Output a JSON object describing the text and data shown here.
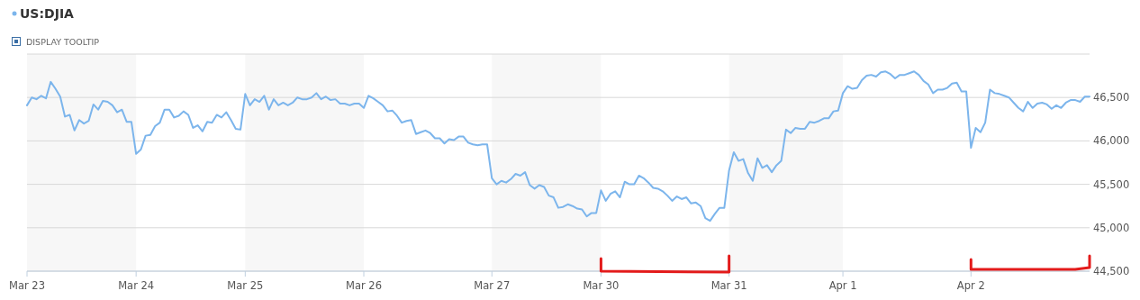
{
  "chart_data": {
    "type": "line",
    "title": "US:DJIA",
    "annotations": [
      "DISPLAY TOOLTIP"
    ],
    "categories": [
      "Mar 23",
      null,
      null,
      null,
      null,
      null,
      null,
      null,
      null,
      null,
      null,
      null,
      null,
      null,
      null,
      null,
      null,
      null,
      null,
      null,
      null,
      null,
      null,
      "Mar 24",
      null,
      null,
      null,
      null,
      null,
      null,
      null,
      null,
      null,
      null,
      null,
      null,
      null,
      null,
      null,
      null,
      null,
      null,
      null,
      null,
      null,
      null,
      "Mar 25",
      null,
      null,
      null,
      null,
      null,
      null,
      null,
      null,
      null,
      null,
      null,
      null,
      null,
      null,
      null,
      null,
      null,
      null,
      null,
      null,
      null,
      null,
      null,
      null,
      "Mar 26",
      null,
      null,
      null,
      null,
      null,
      null,
      null,
      null,
      null,
      null,
      null,
      null,
      null,
      null,
      null,
      null,
      null,
      null,
      null,
      null,
      null,
      null,
      null,
      null,
      null,
      null,
      "Mar 27",
      null,
      null,
      null,
      null,
      null,
      null,
      null,
      null,
      null,
      null,
      null,
      null,
      null,
      null,
      null,
      null,
      null,
      null,
      null,
      null,
      null,
      null,
      "Mar 30",
      null,
      null,
      null,
      null,
      null,
      null,
      null,
      null,
      null,
      null,
      null,
      null,
      null,
      null,
      null,
      null,
      null,
      null,
      null,
      null,
      null,
      null,
      null,
      null,
      null,
      null,
      "Mar 31",
      null,
      null,
      null,
      null,
      null,
      null,
      null,
      null,
      null,
      null,
      null,
      null,
      null,
      null,
      null,
      null,
      null,
      null,
      null,
      null,
      null,
      null,
      null,
      "Apr 1",
      null,
      null,
      null,
      null,
      null,
      null,
      null,
      null,
      null,
      null,
      null,
      null,
      null,
      null,
      null,
      null,
      null,
      null,
      null,
      null,
      null,
      null,
      null,
      null,
      null,
      null,
      "Apr 2",
      null,
      null,
      null,
      null,
      null,
      null,
      null,
      null,
      null,
      null,
      null,
      null,
      null,
      null,
      null,
      null,
      null,
      null,
      null,
      null,
      null,
      null,
      null,
      null,
      null
    ],
    "ylim": [
      44500,
      47000
    ],
    "yticks": [
      {
        "value": 44500,
        "label": "44,500"
      },
      {
        "value": 45000,
        "label": "45,000"
      },
      {
        "value": 45500,
        "label": "45,500"
      },
      {
        "value": 46000,
        "label": "46,000"
      },
      {
        "value": 46500,
        "label": "46,500"
      },
      {
        "value": 47000,
        "label": null
      }
    ],
    "grid": "y",
    "marker": "none",
    "line_style": "solid",
    "bands": [
      {
        "axis": "x",
        "from": "Mar 23",
        "to": "Mar 24",
        "color": "#f7f7f7"
      },
      {
        "axis": "x",
        "from": "Mar 25",
        "to": "Mar 26",
        "color": "#f7f7f7"
      },
      {
        "axis": "x",
        "from": "Mar 27",
        "to": "Mar 30",
        "color": "#f7f7f7"
      },
      {
        "axis": "x",
        "from": "Mar 31",
        "to": "Apr 1",
        "color": "#f7f7f7"
      }
    ],
    "series": [
      {
        "color": "#7cb5ec",
        "values": [
          46410,
          46500,
          46480,
          46520,
          46490,
          46680,
          46600,
          46510,
          46280,
          46300,
          46120,
          46240,
          46200,
          46230,
          46420,
          46360,
          46460,
          46450,
          46410,
          46330,
          46360,
          46220,
          46220,
          45850,
          45900,
          46060,
          46070,
          46170,
          46210,
          46360,
          46360,
          46270,
          46290,
          46340,
          46300,
          46150,
          46180,
          46110,
          46220,
          46210,
          46300,
          46270,
          46330,
          46240,
          46140,
          46130,
          46540,
          46410,
          46480,
          46450,
          46520,
          46360,
          46480,
          46410,
          46440,
          46410,
          46440,
          46500,
          46480,
          46480,
          46500,
          46550,
          46480,
          46510,
          46470,
          46480,
          46430,
          46430,
          46410,
          46430,
          46430,
          46380,
          46520,
          46490,
          46450,
          46410,
          46340,
          46350,
          46290,
          46210,
          46230,
          46240,
          46080,
          46100,
          46120,
          46090,
          46030,
          46030,
          45970,
          46020,
          46010,
          46050,
          46050,
          45980,
          45960,
          45950,
          45960,
          45960,
          45570,
          45500,
          45540,
          45520,
          45560,
          45620,
          45600,
          45640,
          45490,
          45450,
          45490,
          45470,
          45370,
          45350,
          45230,
          45240,
          45270,
          45250,
          45220,
          45210,
          45130,
          45170,
          45170,
          45430,
          45310,
          45390,
          45420,
          45350,
          45530,
          45500,
          45500,
          45600,
          45570,
          45520,
          45460,
          45450,
          45420,
          45370,
          45310,
          45360,
          45330,
          45350,
          45280,
          45290,
          45250,
          45110,
          45080,
          45160,
          45230,
          45230,
          45660,
          45870,
          45770,
          45790,
          45630,
          45540,
          45800,
          45690,
          45720,
          45640,
          45720,
          45770,
          46130,
          46090,
          46150,
          46140,
          46140,
          46220,
          46210,
          46230,
          46260,
          46260,
          46340,
          46350,
          46550,
          46630,
          46600,
          46610,
          46700,
          46750,
          46760,
          46740,
          46790,
          46800,
          46770,
          46720,
          46760,
          46760,
          46780,
          46800,
          46760,
          46690,
          46650,
          46550,
          46590,
          46590,
          46610,
          46660,
          46670,
          46570,
          46570,
          45920,
          46150,
          46100,
          46210,
          46590,
          46550,
          46540,
          46520,
          46500,
          46440,
          46380,
          46340,
          46450,
          46380,
          46430,
          46440,
          46420,
          46370,
          46410,
          46380,
          46440,
          46470,
          46470,
          46450,
          46510,
          46510
        ]
      }
    ]
  }
}
